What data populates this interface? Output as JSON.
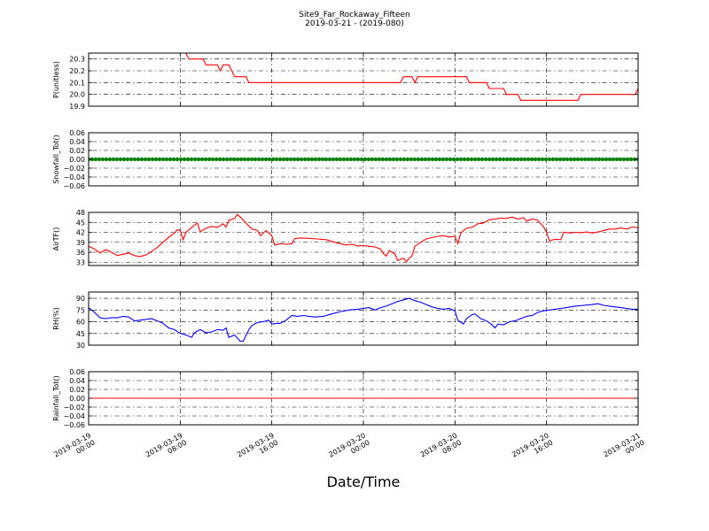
{
  "figure": {
    "title_line1": "Site9_Far_Rockaway_Fifteen",
    "title_line2": "2019-03-21 - (2019-080)",
    "xlabel": "Date/Time"
  },
  "chart_data": {
    "type": "line",
    "x_range": [
      "2019-03-19 00:00",
      "2019-03-21 00:00"
    ],
    "x_ticks": [
      {
        "value": "2019-03-19 00:00",
        "line1": "2019-03-19",
        "line2": "00:00"
      },
      {
        "value": "2019-03-19 08:00",
        "line1": "2019-03-19",
        "line2": "08:00"
      },
      {
        "value": "2019-03-19 16:00",
        "line1": "2019-03-19",
        "line2": "16:00"
      },
      {
        "value": "2019-03-20 00:00",
        "line1": "2019-03-20",
        "line2": "00:00"
      },
      {
        "value": "2019-03-20 08:00",
        "line1": "2019-03-20",
        "line2": "08:00"
      },
      {
        "value": "2019-03-20 16:00",
        "line1": "2019-03-20",
        "line2": "16:00"
      },
      {
        "value": "2019-03-21 00:00",
        "line1": "2019-03-21",
        "line2": "00:00"
      }
    ],
    "grid": true,
    "panels": [
      {
        "id": "p",
        "ylabel": "P(unitless)",
        "ylim": [
          19.9,
          20.35
        ],
        "yticks": [
          "19.9",
          "20.0",
          "20.1",
          "20.2",
          "20.3"
        ],
        "color": "#ff0000",
        "marker": "line",
        "points": [
          [
            "2019-03-19 08:30",
            20.35
          ],
          [
            "2019-03-19 08:45",
            20.3
          ],
          [
            "2019-03-19 10:00",
            20.3
          ],
          [
            "2019-03-19 10:15",
            20.25
          ],
          [
            "2019-03-19 11:15",
            20.25
          ],
          [
            "2019-03-19 11:30",
            20.2
          ],
          [
            "2019-03-19 11:45",
            20.25
          ],
          [
            "2019-03-19 12:15",
            20.25
          ],
          [
            "2019-03-19 12:45",
            20.15
          ],
          [
            "2019-03-19 13:45",
            20.15
          ],
          [
            "2019-03-19 14:00",
            20.1
          ],
          [
            "2019-03-20 03:15",
            20.1
          ],
          [
            "2019-03-20 03:30",
            20.15
          ],
          [
            "2019-03-20 04:15",
            20.15
          ],
          [
            "2019-03-20 04:30",
            20.1
          ],
          [
            "2019-03-20 04:45",
            20.15
          ],
          [
            "2019-03-20 09:00",
            20.15
          ],
          [
            "2019-03-20 09:15",
            20.1
          ],
          [
            "2019-03-20 10:45",
            20.1
          ],
          [
            "2019-03-20 11:00",
            20.05
          ],
          [
            "2019-03-20 12:15",
            20.05
          ],
          [
            "2019-03-20 12:30",
            20.0
          ],
          [
            "2019-03-20 13:30",
            20.0
          ],
          [
            "2019-03-20 13:45",
            19.95
          ],
          [
            "2019-03-20 18:45",
            19.95
          ],
          [
            "2019-03-20 19:00",
            20.0
          ],
          [
            "2019-03-20 23:45",
            20.0
          ],
          [
            "2019-03-21 00:00",
            20.05
          ]
        ]
      },
      {
        "id": "snow",
        "ylabel": "Snowfall_Tot()",
        "ylim": [
          -0.06,
          0.06
        ],
        "yticks": [
          "−0.06",
          "−0.04",
          "−0.02",
          "0.00",
          "0.02",
          "0.04",
          "0.06"
        ],
        "color": "#008000",
        "marker": "dots",
        "constant": 0.0
      },
      {
        "id": "airt",
        "ylabel": "AirTF()",
        "ylim": [
          32,
          48
        ],
        "yticks": [
          "33",
          "36",
          "39",
          "42",
          "45",
          "48"
        ],
        "color": "#ff0000",
        "marker": "line",
        "points": [
          [
            "2019-03-19 00:00",
            37.8
          ],
          [
            "2019-03-19 00:30",
            37.0
          ],
          [
            "2019-03-19 01:00",
            35.8
          ],
          [
            "2019-03-19 01:30",
            36.8
          ],
          [
            "2019-03-19 02:00",
            36.0
          ],
          [
            "2019-03-19 02:30",
            35.0
          ],
          [
            "2019-03-19 03:00",
            35.4
          ],
          [
            "2019-03-19 03:30",
            35.8
          ],
          [
            "2019-03-19 04:00",
            35.0
          ],
          [
            "2019-03-19 04:30",
            34.7
          ],
          [
            "2019-03-19 05:00",
            35.2
          ],
          [
            "2019-03-19 05:30",
            36.2
          ],
          [
            "2019-03-19 06:00",
            37.5
          ],
          [
            "2019-03-19 06:30",
            39.0
          ],
          [
            "2019-03-19 07:00",
            40.5
          ],
          [
            "2019-03-19 07:30",
            41.8
          ],
          [
            "2019-03-19 07:45",
            42.8
          ],
          [
            "2019-03-19 08:00",
            42.5
          ],
          [
            "2019-03-19 08:15",
            39.8
          ],
          [
            "2019-03-19 08:30",
            42.0
          ],
          [
            "2019-03-19 09:00",
            43.5
          ],
          [
            "2019-03-19 09:30",
            44.8
          ],
          [
            "2019-03-19 09:45",
            42.2
          ],
          [
            "2019-03-19 10:15",
            43.2
          ],
          [
            "2019-03-19 10:45",
            43.8
          ],
          [
            "2019-03-19 11:15",
            43.5
          ],
          [
            "2019-03-19 11:45",
            44.6
          ],
          [
            "2019-03-19 12:00",
            43.6
          ],
          [
            "2019-03-19 12:15",
            45.6
          ],
          [
            "2019-03-19 12:45",
            46.2
          ],
          [
            "2019-03-19 13:00",
            47.4
          ],
          [
            "2019-03-19 13:15",
            46.6
          ],
          [
            "2019-03-19 13:45",
            44.8
          ],
          [
            "2019-03-19 14:15",
            43.0
          ],
          [
            "2019-03-19 14:45",
            42.6
          ],
          [
            "2019-03-19 15:00",
            41.0
          ],
          [
            "2019-03-19 15:30",
            42.5
          ],
          [
            "2019-03-19 16:00",
            41.0
          ],
          [
            "2019-03-19 16:15",
            38.2
          ],
          [
            "2019-03-19 16:45",
            38.6
          ],
          [
            "2019-03-19 17:15",
            38.4
          ],
          [
            "2019-03-19 17:45",
            38.6
          ],
          [
            "2019-03-19 18:00",
            40.1
          ],
          [
            "2019-03-19 18:30",
            40.3
          ],
          [
            "2019-03-19 19:15",
            40.2
          ],
          [
            "2019-03-19 20:00",
            40.0
          ],
          [
            "2019-03-19 20:45",
            39.8
          ],
          [
            "2019-03-19 21:30",
            39.0
          ],
          [
            "2019-03-19 22:00",
            38.6
          ],
          [
            "2019-03-19 22:30",
            38.2
          ],
          [
            "2019-03-19 23:00",
            38.4
          ],
          [
            "2019-03-19 23:30",
            37.9
          ],
          [
            "2019-03-20 00:00",
            38.0
          ],
          [
            "2019-03-20 00:30",
            37.8
          ],
          [
            "2019-03-20 01:00",
            37.6
          ],
          [
            "2019-03-20 01:30",
            37.0
          ],
          [
            "2019-03-20 01:45",
            35.6
          ],
          [
            "2019-03-20 02:00",
            34.8
          ],
          [
            "2019-03-20 02:15",
            36.5
          ],
          [
            "2019-03-20 02:45",
            35.5
          ],
          [
            "2019-03-20 03:00",
            33.5
          ],
          [
            "2019-03-20 03:30",
            34.2
          ],
          [
            "2019-03-20 03:45",
            33.2
          ],
          [
            "2019-03-20 04:15",
            35.0
          ],
          [
            "2019-03-20 04:30",
            37.8
          ],
          [
            "2019-03-20 05:00",
            39.0
          ],
          [
            "2019-03-20 05:30",
            40.0
          ],
          [
            "2019-03-20 06:00",
            40.4
          ],
          [
            "2019-03-20 06:30",
            40.8
          ],
          [
            "2019-03-20 07:00",
            41.0
          ],
          [
            "2019-03-20 07:30",
            40.6
          ],
          [
            "2019-03-20 08:00",
            40.8
          ],
          [
            "2019-03-20 08:15",
            38.6
          ],
          [
            "2019-03-20 08:30",
            41.8
          ],
          [
            "2019-03-20 09:00",
            43.2
          ],
          [
            "2019-03-20 09:30",
            43.5
          ],
          [
            "2019-03-20 10:00",
            44.6
          ],
          [
            "2019-03-20 10:30",
            44.8
          ],
          [
            "2019-03-20 11:00",
            45.8
          ],
          [
            "2019-03-20 11:30",
            46.0
          ],
          [
            "2019-03-20 12:00",
            46.3
          ],
          [
            "2019-03-20 12:30",
            46.2
          ],
          [
            "2019-03-20 13:00",
            46.6
          ],
          [
            "2019-03-20 13:30",
            46.0
          ],
          [
            "2019-03-20 14:00",
            46.4
          ],
          [
            "2019-03-20 14:15",
            45.4
          ],
          [
            "2019-03-20 14:45",
            46.0
          ],
          [
            "2019-03-20 15:15",
            45.6
          ],
          [
            "2019-03-20 15:45",
            43.6
          ],
          [
            "2019-03-20 16:00",
            42.0
          ],
          [
            "2019-03-20 16:15",
            39.5
          ],
          [
            "2019-03-20 16:45",
            39.9
          ],
          [
            "2019-03-20 17:15",
            39.8
          ],
          [
            "2019-03-20 17:30",
            42.0
          ],
          [
            "2019-03-20 18:00",
            41.8
          ],
          [
            "2019-03-20 18:30",
            42.0
          ],
          [
            "2019-03-20 19:00",
            41.9
          ],
          [
            "2019-03-20 19:30",
            42.1
          ],
          [
            "2019-03-20 20:00",
            41.8
          ],
          [
            "2019-03-20 20:30",
            42.1
          ],
          [
            "2019-03-20 21:00",
            42.6
          ],
          [
            "2019-03-20 21:30",
            43.0
          ],
          [
            "2019-03-20 22:00",
            43.0
          ],
          [
            "2019-03-20 22:30",
            43.3
          ],
          [
            "2019-03-20 23:00",
            43.0
          ],
          [
            "2019-03-20 23:30",
            43.6
          ],
          [
            "2019-03-21 00:00",
            43.4
          ]
        ]
      },
      {
        "id": "rh",
        "ylabel": "RH(%)",
        "ylim": [
          30,
          98
        ],
        "yticks": [
          "30",
          "45",
          "60",
          "75",
          "90"
        ],
        "color": "#0000ff",
        "marker": "line",
        "points": [
          [
            "2019-03-19 00:00",
            78
          ],
          [
            "2019-03-19 00:30",
            72
          ],
          [
            "2019-03-19 01:00",
            65
          ],
          [
            "2019-03-19 01:30",
            64
          ],
          [
            "2019-03-19 02:00",
            65
          ],
          [
            "2019-03-19 02:30",
            65
          ],
          [
            "2019-03-19 03:00",
            67
          ],
          [
            "2019-03-19 03:30",
            66
          ],
          [
            "2019-03-19 04:00",
            61
          ],
          [
            "2019-03-19 04:30",
            62
          ],
          [
            "2019-03-19 05:00",
            63
          ],
          [
            "2019-03-19 05:30",
            64
          ],
          [
            "2019-03-19 06:00",
            61
          ],
          [
            "2019-03-19 06:30",
            58
          ],
          [
            "2019-03-19 07:00",
            52
          ],
          [
            "2019-03-19 07:30",
            50
          ],
          [
            "2019-03-19 08:00",
            45
          ],
          [
            "2019-03-19 08:30",
            43
          ],
          [
            "2019-03-19 09:00",
            40
          ],
          [
            "2019-03-19 09:15",
            46
          ],
          [
            "2019-03-19 09:45",
            50
          ],
          [
            "2019-03-19 10:15",
            46
          ],
          [
            "2019-03-19 10:45",
            47
          ],
          [
            "2019-03-19 11:15",
            50
          ],
          [
            "2019-03-19 11:45",
            49
          ],
          [
            "2019-03-19 12:00",
            52
          ],
          [
            "2019-03-19 12:15",
            40
          ],
          [
            "2019-03-19 12:45",
            43
          ],
          [
            "2019-03-19 13:15",
            35
          ],
          [
            "2019-03-19 13:30",
            35
          ],
          [
            "2019-03-19 14:00",
            50
          ],
          [
            "2019-03-19 14:15",
            55
          ],
          [
            "2019-03-19 14:45",
            59
          ],
          [
            "2019-03-19 15:15",
            60
          ],
          [
            "2019-03-19 15:45",
            62
          ],
          [
            "2019-03-19 16:00",
            57
          ],
          [
            "2019-03-19 16:30",
            58
          ],
          [
            "2019-03-19 16:45",
            58
          ],
          [
            "2019-03-19 17:15",
            62
          ],
          [
            "2019-03-19 17:45",
            68
          ],
          [
            "2019-03-19 18:15",
            67
          ],
          [
            "2019-03-19 18:45",
            68
          ],
          [
            "2019-03-19 19:15",
            67
          ],
          [
            "2019-03-19 19:45",
            66
          ],
          [
            "2019-03-19 20:30",
            67
          ],
          [
            "2019-03-19 21:15",
            70
          ],
          [
            "2019-03-19 22:00",
            73
          ],
          [
            "2019-03-19 22:45",
            75
          ],
          [
            "2019-03-19 23:30",
            76
          ],
          [
            "2019-03-20 00:00",
            77
          ],
          [
            "2019-03-20 00:30",
            78
          ],
          [
            "2019-03-20 01:00",
            75
          ],
          [
            "2019-03-20 01:30",
            78
          ],
          [
            "2019-03-20 02:00",
            80
          ],
          [
            "2019-03-20 02:30",
            83
          ],
          [
            "2019-03-20 03:00",
            86
          ],
          [
            "2019-03-20 03:30",
            88
          ],
          [
            "2019-03-20 04:00",
            90
          ],
          [
            "2019-03-20 04:30",
            87
          ],
          [
            "2019-03-20 05:00",
            85
          ],
          [
            "2019-03-20 05:30",
            82
          ],
          [
            "2019-03-20 06:00",
            79
          ],
          [
            "2019-03-20 06:30",
            77
          ],
          [
            "2019-03-20 07:00",
            76
          ],
          [
            "2019-03-20 07:30",
            77
          ],
          [
            "2019-03-20 08:00",
            74
          ],
          [
            "2019-03-20 08:15",
            62
          ],
          [
            "2019-03-20 08:45",
            57
          ],
          [
            "2019-03-20 09:00",
            64
          ],
          [
            "2019-03-20 09:30",
            69
          ],
          [
            "2019-03-20 09:45",
            70
          ],
          [
            "2019-03-20 10:15",
            64
          ],
          [
            "2019-03-20 10:45",
            61
          ],
          [
            "2019-03-20 11:15",
            56
          ],
          [
            "2019-03-20 11:30",
            52
          ],
          [
            "2019-03-20 11:45",
            57
          ],
          [
            "2019-03-20 12:15",
            56
          ],
          [
            "2019-03-20 12:45",
            60
          ],
          [
            "2019-03-20 13:15",
            61
          ],
          [
            "2019-03-20 13:45",
            64
          ],
          [
            "2019-03-20 14:15",
            67
          ],
          [
            "2019-03-20 14:45",
            68
          ],
          [
            "2019-03-20 15:15",
            72
          ],
          [
            "2019-03-20 15:45",
            74
          ],
          [
            "2019-03-20 16:15",
            75
          ],
          [
            "2019-03-20 16:45",
            76
          ],
          [
            "2019-03-20 17:15",
            77
          ],
          [
            "2019-03-20 17:45",
            78
          ],
          [
            "2019-03-20 18:30",
            80
          ],
          [
            "2019-03-20 19:15",
            81
          ],
          [
            "2019-03-20 20:00",
            82
          ],
          [
            "2019-03-20 20:30",
            83
          ],
          [
            "2019-03-20 21:00",
            81
          ],
          [
            "2019-03-20 21:30",
            80
          ],
          [
            "2019-03-20 22:00",
            79
          ],
          [
            "2019-03-20 22:30",
            78
          ],
          [
            "2019-03-20 23:00",
            77
          ],
          [
            "2019-03-20 23:30",
            76
          ],
          [
            "2019-03-21 00:00",
            76
          ]
        ]
      },
      {
        "id": "rain",
        "ylabel": "Rainfall_Tot()",
        "ylim": [
          -0.06,
          0.06
        ],
        "yticks": [
          "−0.06",
          "−0.04",
          "−0.02",
          "0.00",
          "0.02",
          "0.04",
          "0.06"
        ],
        "color": "#ff0000",
        "marker": "line",
        "constant": 0.0
      }
    ]
  }
}
